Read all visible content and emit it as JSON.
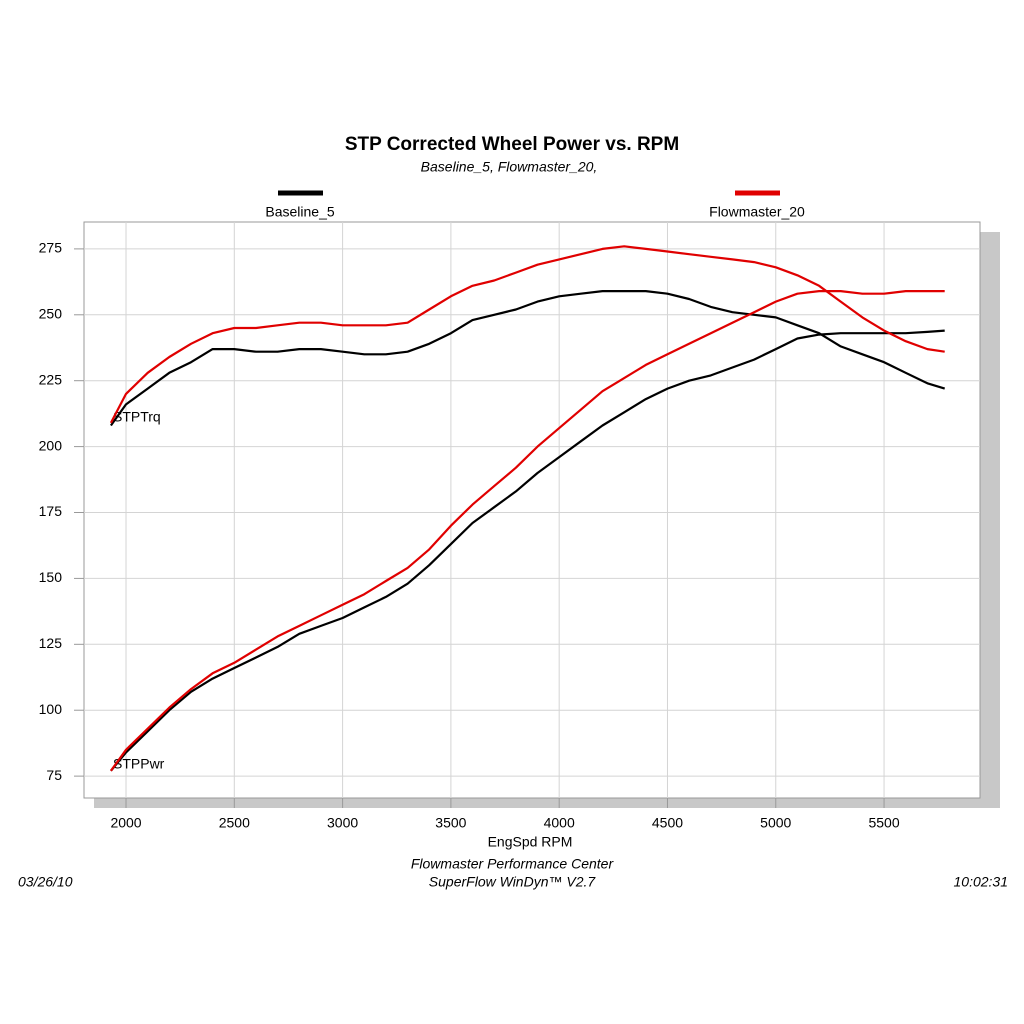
{
  "chart_data": {
    "type": "line",
    "title": "STP Corrected Wheel Power vs. RPM",
    "subtitle": "Baseline_5, Flowmaster_20,",
    "x_label": "EngSpd RPM",
    "footer": [
      "Flowmaster Performance Center",
      "SuperFlow WinDyn™ V2.7"
    ],
    "date": "03/26/10",
    "time": "10:02:31",
    "curve_labels": [
      "STPTrq",
      "STPPwr"
    ],
    "x": [
      1930,
      2000,
      2100,
      2200,
      2300,
      2400,
      2500,
      2600,
      2700,
      2800,
      2900,
      3000,
      3100,
      3200,
      3300,
      3400,
      3500,
      3600,
      3700,
      3800,
      3900,
      4000,
      4100,
      4200,
      4300,
      4400,
      4500,
      4600,
      4700,
      4800,
      4900,
      5000,
      5100,
      5200,
      5300,
      5400,
      5500,
      5600,
      5700,
      5780
    ],
    "series": [
      {
        "name": "Baseline_5",
        "color": "#000000",
        "torque": [
          208,
          216,
          222,
          228,
          232,
          237,
          237,
          236,
          236,
          237,
          237,
          236,
          235,
          235,
          236,
          239,
          243,
          248,
          250,
          252,
          255,
          257,
          258,
          259,
          259,
          259,
          258,
          256,
          253,
          251,
          250,
          249,
          246,
          243,
          238,
          235,
          232,
          228,
          224,
          222
        ],
        "power": [
          77,
          84,
          92,
          100,
          107,
          112,
          116,
          120,
          124,
          129,
          132,
          135,
          139,
          143,
          148,
          155,
          163,
          171,
          177,
          183,
          190,
          196,
          202,
          208,
          213,
          218,
          222,
          225,
          227,
          230,
          233,
          237,
          241,
          242.5,
          243,
          243,
          243,
          243,
          243.5,
          244
        ]
      },
      {
        "name": "Flowmaster_20",
        "color": "#e00000",
        "torque": [
          209,
          220,
          228,
          234,
          239,
          243,
          245,
          245,
          246,
          247,
          247,
          246,
          246,
          246,
          247,
          252,
          257,
          261,
          263,
          266,
          269,
          271,
          273,
          275,
          276,
          275,
          274,
          273,
          272,
          271,
          270,
          268,
          265,
          261,
          255,
          249,
          244,
          240,
          237,
          236
        ],
        "power": [
          77,
          85,
          93,
          101,
          108,
          114,
          118,
          123,
          128,
          132,
          136,
          140,
          144,
          149,
          154,
          161,
          170,
          178,
          185,
          192,
          200,
          207,
          214,
          221,
          226,
          231,
          235,
          239,
          243,
          247,
          251,
          255,
          258,
          259,
          259,
          258,
          258,
          259,
          259,
          259
        ]
      }
    ],
    "xlim": [
      1806,
      5943
    ],
    "ylim": [
      66.7,
      285.2
    ],
    "xticks": [
      2000,
      2500,
      3000,
      3500,
      4000,
      4500,
      5000,
      5500
    ],
    "yticks": [
      75,
      100,
      125,
      150,
      175,
      200,
      225,
      250,
      275
    ],
    "grid": true
  }
}
